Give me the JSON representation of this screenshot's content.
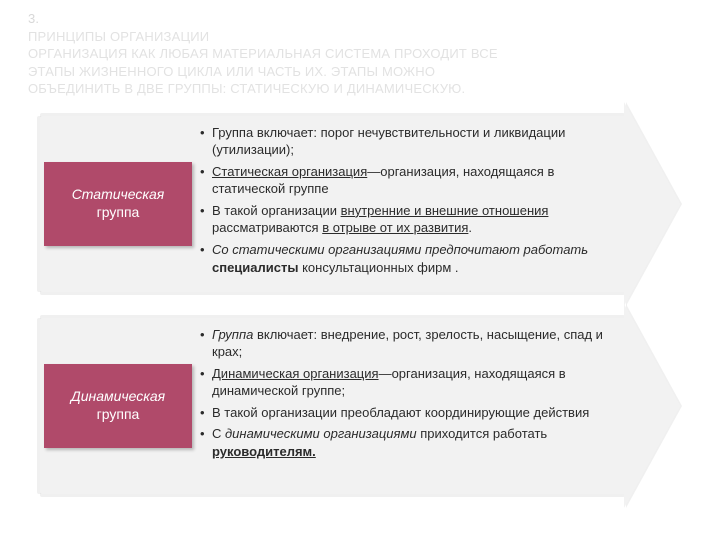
{
  "title": {
    "num": "3.",
    "line1": "ПРИНЦИПЫ ОРГАНИЗАЦИИ",
    "line2": "ОРГАНИЗАЦИЯ КАК ЛЮБАЯ МАТЕРИАЛЬНАЯ СИСТЕМА ПРОХОДИТ ВСЕ",
    "line3": "ЭТАПЫ ЖИЗНЕННОГО ЦИКЛА ИЛИ ЧАСТЬ ИХ. ЭТАПЫ МОЖНО",
    "line4": "ОБЪЕДИНИТЬ В ДВЕ ГРУППЫ: СТАТИЧЕСКУЮ И ДИНАМИЧЕСКУЮ."
  },
  "colors": {
    "tab_bg": "#b04a6a",
    "tab_text": "#ffffff",
    "arrow_bg": "#f2f2f2",
    "body_text": "#2b2b2b",
    "title_text": "#e2e2e2",
    "page_bg": "#ffffff"
  },
  "panels": [
    {
      "label_line1": "Статическая",
      "label_line2": "группа",
      "bullets": [
        {
          "plain_pre": "Группа включает: порог нечувствительности и ликвидации (утилизации);"
        },
        {
          "u1": "Статическая организация",
          "rest1": "—организация, находящаяся в статической группе"
        },
        {
          "pre2": "В такой организации ",
          "u2a": "внутренние и внешние отношения",
          "mid2": " рассматриваются ",
          "u2b": "в отрыве от их развития",
          "post2": "."
        },
        {
          "i3a": "Со статическими организациями предпочитают работать  ",
          "b3": "специалисты",
          "post3": " консультационных фирм ."
        }
      ]
    },
    {
      "label_line1": "Динамическая",
      "label_line2": "группа",
      "bullets": [
        {
          "i_pre": "Группа",
          "post": " включает: внедрение, рост, зрелость, насыщение, спад и крах;"
        },
        {
          "u1": "Динамическая организация",
          "rest1": "—организация, находящаяся в динамической группе;"
        },
        {
          "plain2": "В такой организации преобладают координирующие действия"
        },
        {
          "pre3": "С ",
          "i3": "динамическими организациями",
          "mid3": " приходится работать ",
          "bu3": "руководителям."
        }
      ]
    }
  ]
}
